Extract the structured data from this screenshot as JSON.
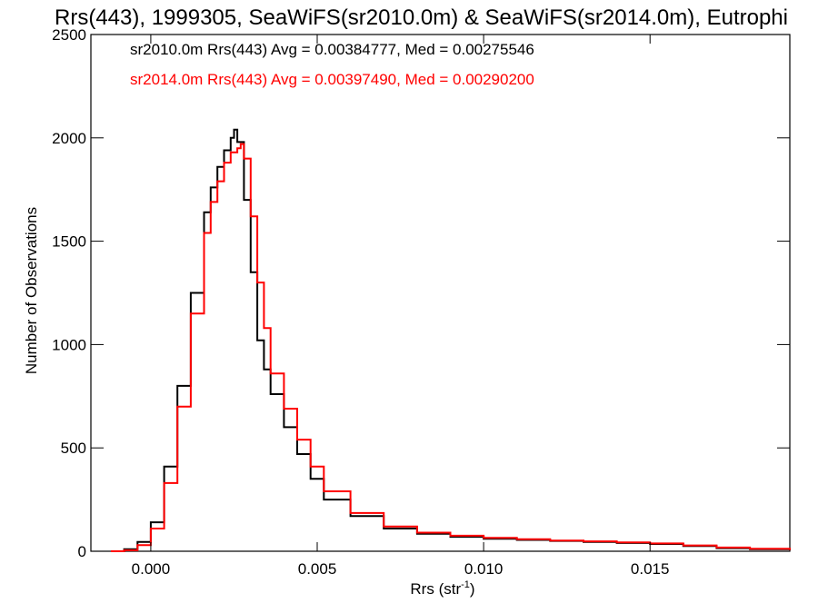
{
  "chart_data": {
    "type": "line",
    "title": "Rrs(443), 1999305, SeaWiFS(sr2010.0m) & SeaWiFS(sr2014.0m), Eutrophi",
    "xlabel_base": "Rrs (str",
    "xlabel_sup": "-1",
    "xlabel_close": ")",
    "ylabel": "Number of Observations",
    "xlim": [
      -0.0018,
      0.0192
    ],
    "ylim": [
      0,
      2500
    ],
    "x_ticks": [
      0.0,
      0.005,
      0.01,
      0.015
    ],
    "x_tick_labels": [
      "0.000",
      "0.005",
      "0.010",
      "0.015"
    ],
    "y_ticks": [
      0,
      500,
      1000,
      1500,
      2000,
      2500
    ],
    "y_tick_labels": [
      "0",
      "500",
      "1000",
      "1500",
      "2000",
      "2500"
    ],
    "grid": false,
    "legend_position": "top-left",
    "series": [
      {
        "name": "sr2010.0m",
        "color": "#000000",
        "stats_label": "sr2010.0m Rrs(443) Avg = 0.00384777, Med = 0.00275546",
        "x": [
          -0.0012,
          -0.0008,
          -0.0004,
          0.0,
          0.0004,
          0.0008,
          0.0012,
          0.0016,
          0.0018,
          0.002,
          0.0022,
          0.0024,
          0.0025,
          0.0026,
          0.0028,
          0.003,
          0.0032,
          0.0034,
          0.0036,
          0.004,
          0.0044,
          0.0048,
          0.0052,
          0.006,
          0.007,
          0.008,
          0.009,
          0.01,
          0.011,
          0.012,
          0.013,
          0.014,
          0.015,
          0.016,
          0.017,
          0.018,
          0.0192
        ],
        "y": [
          0,
          10,
          45,
          140,
          410,
          800,
          1250,
          1640,
          1760,
          1860,
          1940,
          2000,
          2040,
          1980,
          1700,
          1350,
          1020,
          880,
          760,
          600,
          470,
          350,
          250,
          170,
          110,
          85,
          70,
          60,
          55,
          50,
          45,
          40,
          35,
          25,
          15,
          10,
          5
        ]
      },
      {
        "name": "sr2014.0m",
        "color": "#ff0000",
        "stats_label": "sr2014.0m Rrs(443) Avg = 0.00397490, Med = 0.00290200",
        "x": [
          -0.0012,
          -0.0008,
          -0.0004,
          0.0,
          0.0004,
          0.0008,
          0.0012,
          0.0016,
          0.0018,
          0.002,
          0.0022,
          0.0024,
          0.0026,
          0.0027,
          0.0028,
          0.003,
          0.0032,
          0.0034,
          0.0036,
          0.004,
          0.0044,
          0.0048,
          0.0052,
          0.006,
          0.007,
          0.008,
          0.009,
          0.01,
          0.011,
          0.012,
          0.013,
          0.014,
          0.015,
          0.016,
          0.017,
          0.018,
          0.0192
        ],
        "y": [
          0,
          5,
          30,
          110,
          330,
          700,
          1150,
          1540,
          1690,
          1790,
          1880,
          1930,
          1950,
          1970,
          1900,
          1620,
          1300,
          1080,
          860,
          690,
          540,
          410,
          290,
          185,
          120,
          90,
          75,
          65,
          58,
          52,
          48,
          43,
          38,
          28,
          18,
          12,
          6
        ]
      }
    ]
  }
}
